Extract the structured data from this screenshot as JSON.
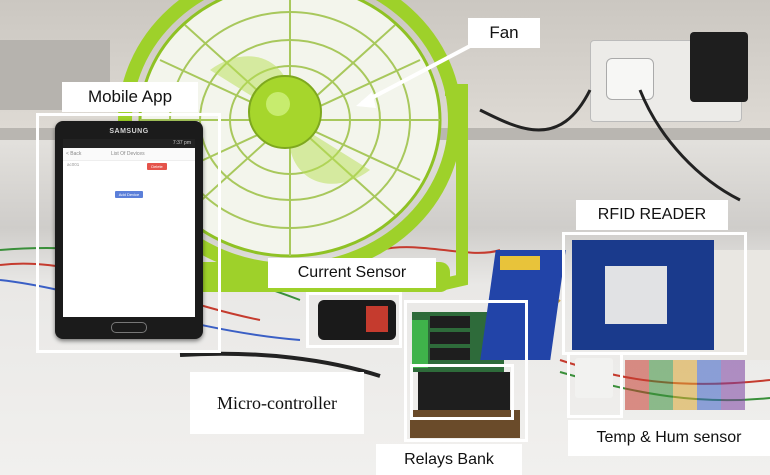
{
  "labels": {
    "fan": "Fan",
    "mobile_app": "Mobile App",
    "rfid_reader": "RFID READER",
    "current_sensor": "Current Sensor",
    "micro_controller": "Micro-controller",
    "temp_hum_sensor": "Temp & Hum sensor",
    "relays_bank": "Relays Bank"
  },
  "phone": {
    "brand": "SAMSUNG",
    "status_time": "7:37 pm",
    "back": "< Back",
    "screen_title": "List Of Devices",
    "device_name": "ac001",
    "delete_button": "Delete",
    "add_device_button": "Add Device"
  },
  "colors": {
    "fan_green": "#9ed12a",
    "rfid_blue": "#1a3a8c",
    "relay_blue": "#2244a8",
    "delete_red": "#e5534b",
    "add_blue": "#5b7fd9"
  }
}
